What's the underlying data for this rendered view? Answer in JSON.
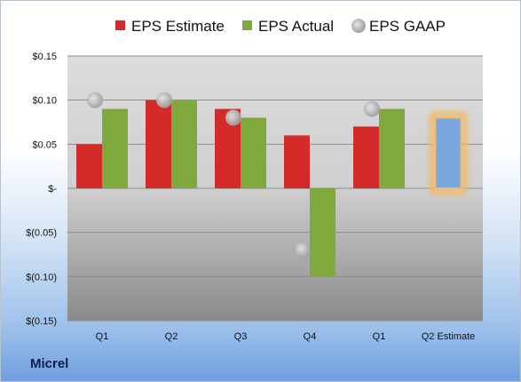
{
  "company": "Micrel",
  "chart_data": {
    "type": "bar",
    "title": "",
    "xlabel": "",
    "ylabel": "",
    "categories": [
      "Q1",
      "Q2",
      "Q3",
      "Q4",
      "Q1",
      "Q2 Estimate"
    ],
    "ylim": [
      -0.15,
      0.15
    ],
    "yticks": [
      0.15,
      0.1,
      0.05,
      0,
      -0.05,
      -0.1,
      -0.15
    ],
    "ytick_labels": [
      "$0.15",
      "$0.10",
      "$0.05",
      "$-",
      "$(0.05)",
      "$(0.10)",
      "$(0.15)"
    ],
    "grid": true,
    "legend_position": "top",
    "series": [
      {
        "name": "EPS Estimate",
        "kind": "bar",
        "color": "#d42a2a",
        "values": [
          0.05,
          0.1,
          0.09,
          0.06,
          0.07,
          null
        ]
      },
      {
        "name": "EPS Actual",
        "kind": "bar",
        "color": "#7fa83d",
        "values": [
          0.09,
          0.1,
          0.08,
          -0.1,
          0.09,
          null
        ]
      },
      {
        "name": "EPS GAAP",
        "kind": "marker",
        "color": "#b5b5b5",
        "values": [
          0.1,
          0.1,
          0.08,
          -0.07,
          0.09,
          null
        ]
      }
    ],
    "estimate_bar": {
      "category": "Q2 Estimate",
      "value": 0.08,
      "color": "#7aa6e0",
      "highlight": "#f2b968"
    }
  }
}
